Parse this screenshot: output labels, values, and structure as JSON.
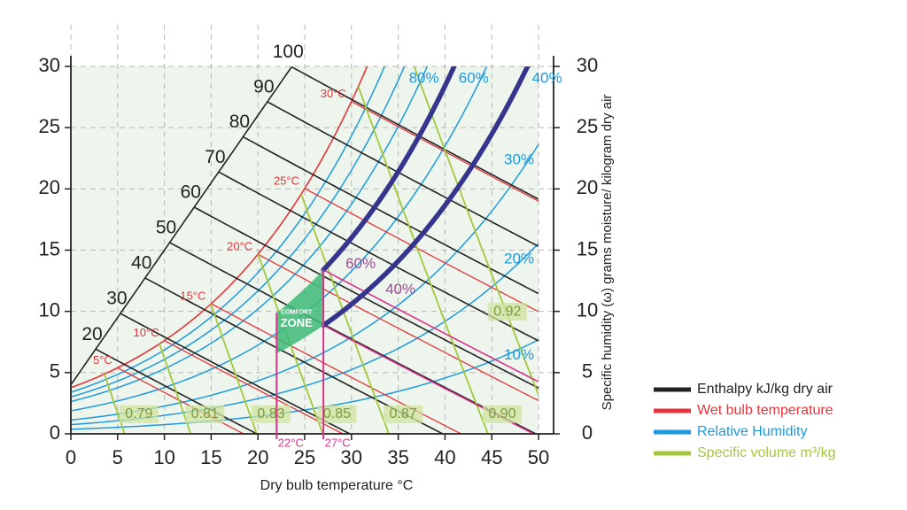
{
  "chart_data": {
    "type": "psychrometric",
    "xlabel": "Dry bulb temperature °C",
    "ylabel": "Specific humidity (ω) grams moisture/ kilogram dry air",
    "xlim": [
      0,
      50
    ],
    "xticks": [
      0,
      5,
      10,
      15,
      20,
      25,
      30,
      35,
      40,
      45,
      50
    ],
    "ylim": [
      0,
      30
    ],
    "yticks": [
      0,
      5,
      10,
      15,
      20,
      25,
      30
    ],
    "y2lim": [
      0,
      30
    ],
    "y2ticks": [
      0,
      5,
      10,
      15,
      20,
      25,
      30
    ],
    "grid": true,
    "legend": "right",
    "enthalpy": {
      "name": "Enthalpy kJ/kg dry air",
      "color": "#222222",
      "values": [
        20,
        30,
        40,
        50,
        60,
        70,
        80,
        90,
        100
      ]
    },
    "wet_bulb": {
      "name": "Wet bulb temperature",
      "color": "#e5343b",
      "values": [
        5,
        10,
        15,
        20,
        25,
        30
      ],
      "value_labels": [
        "5°C",
        "10°C",
        "15°C",
        "20°C",
        "25°C",
        "30°C"
      ]
    },
    "relative_humidity": {
      "name": "Relative Humidity",
      "color": "#1d9ade",
      "values": [
        10,
        20,
        30,
        50,
        70,
        80,
        90
      ],
      "value_labels": [
        "10%",
        "20%",
        "30%",
        null,
        null,
        "80%",
        null
      ]
    },
    "specific_volume": {
      "name": "Specific volume m³/kg",
      "color": "#a3c83b",
      "values": [
        0.79,
        0.81,
        0.83,
        0.85,
        0.87,
        0.9,
        0.92
      ],
      "value_labels": [
        "0.79",
        "0.81",
        "0.83",
        "0.85",
        "0.87",
        "0.90",
        "0.92"
      ]
    },
    "comfort_zone": {
      "label": [
        "COMFORT",
        "ZONE"
      ],
      "temperature": [
        22,
        27
      ],
      "temperature_labels": [
        "22°C",
        "27°C"
      ],
      "humidity": [
        60,
        40
      ],
      "humidity_labels": [
        "60%",
        "40%"
      ],
      "fill": "#3dba78",
      "line_color": "#d8348c",
      "thick_color": "#35358e",
      "label_color": "#9a4c95"
    }
  }
}
